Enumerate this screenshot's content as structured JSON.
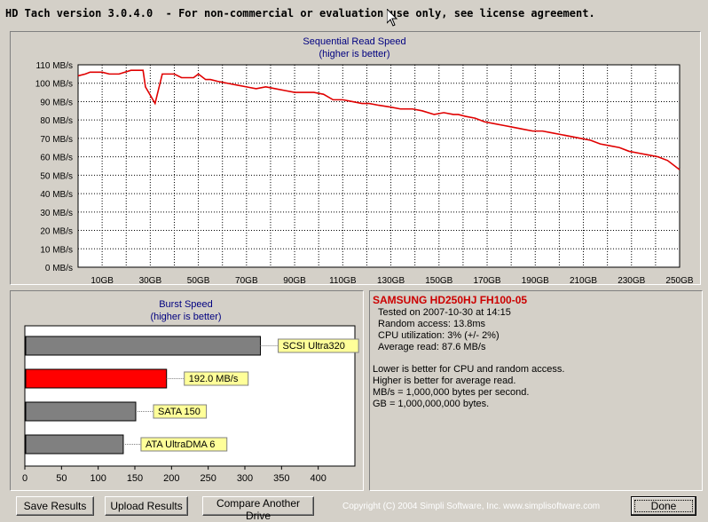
{
  "window": {
    "title": "HD Tach version 3.0.4.0  - For non-commercial or evaluation use only, see license agreement."
  },
  "sequential": {
    "title": "Sequential Read Speed",
    "subtitle": "(higher is better)"
  },
  "burst": {
    "title": "Burst Speed",
    "subtitle": "(higher is better)"
  },
  "chart_data": [
    {
      "type": "line",
      "title": "Sequential Read Speed",
      "subtitle": "(higher is better)",
      "xlabel": "",
      "ylabel": "",
      "xlim": [
        0,
        250
      ],
      "ylim": [
        0,
        110
      ],
      "x_ticks": [
        "10GB",
        "30GB",
        "50GB",
        "70GB",
        "90GB",
        "110GB",
        "130GB",
        "150GB",
        "170GB",
        "190GB",
        "210GB",
        "230GB",
        "250GB"
      ],
      "y_ticks": [
        "0 MB/s",
        "10 MB/s",
        "20 MB/s",
        "30 MB/s",
        "40 MB/s",
        "50 MB/s",
        "60 MB/s",
        "70 MB/s",
        "80 MB/s",
        "90 MB/s",
        "100 MB/s",
        "110 MB/s"
      ],
      "grid": true,
      "series": [
        {
          "color": "#e00000",
          "x": [
            0,
            3,
            5,
            10,
            13,
            17,
            22,
            27,
            28,
            32,
            35,
            37,
            40,
            43,
            45,
            48,
            50,
            53,
            55,
            58,
            62,
            66,
            70,
            74,
            78,
            82,
            86,
            90,
            94,
            98,
            102,
            106,
            110,
            114,
            118,
            121,
            125,
            130,
            134,
            139,
            143,
            148,
            152,
            156,
            158,
            161,
            165,
            169,
            173,
            177,
            181,
            185,
            189,
            193,
            197,
            201,
            205,
            209,
            213,
            217,
            221,
            225,
            229,
            233,
            237,
            241,
            245,
            250
          ],
          "y": [
            104,
            105,
            106,
            106,
            105,
            105,
            107,
            107,
            98,
            89,
            105,
            105,
            105,
            103,
            103,
            103,
            105,
            102,
            102,
            101,
            100,
            99,
            98,
            97,
            98,
            97,
            96,
            95,
            95,
            95,
            94,
            91,
            91,
            90,
            89,
            89,
            88,
            87,
            86,
            86,
            85,
            83,
            84,
            83,
            83,
            82,
            81,
            79,
            78,
            77,
            76,
            75,
            74,
            74,
            73,
            72,
            71,
            70,
            69,
            67,
            66,
            65,
            63,
            62,
            61,
            60,
            58,
            53
          ]
        }
      ]
    },
    {
      "type": "bar",
      "orientation": "horizontal",
      "title": "Burst Speed",
      "subtitle": "(higher is better)",
      "xlim": [
        0,
        450
      ],
      "x_ticks": [
        0,
        50,
        100,
        150,
        200,
        250,
        300,
        350,
        400
      ],
      "grid": false,
      "categories": [
        "SCSI Ultra320",
        "192.0 MB/s",
        "SATA 150",
        "ATA UltraDMA 6"
      ],
      "values": [
        320,
        192,
        150,
        133
      ],
      "colors": [
        "#808080",
        "#ff0000",
        "#808080",
        "#808080"
      ]
    }
  ],
  "info": {
    "drive": "SAMSUNG HD250HJ FH100-05",
    "tested": "Tested on 2007-10-30 at 14:15",
    "random_access": "Random access: 13.8ms",
    "cpu": "CPU utilization: 3% (+/- 2%)",
    "average": "Average read: 87.6 MB/s",
    "note1": "Lower is better for CPU and random access.",
    "note2": "Higher is better for average read.",
    "note3": "MB/s = 1,000,000 bytes per second.",
    "note4": "GB = 1,000,000,000 bytes."
  },
  "buttons": {
    "save": "Save Results",
    "upload": "Upload Results",
    "compare": "Compare Another Drive",
    "done": "Done"
  },
  "copyright": "Copyright (C) 2004 Simpli Software, Inc. www.simplisoftware.com"
}
